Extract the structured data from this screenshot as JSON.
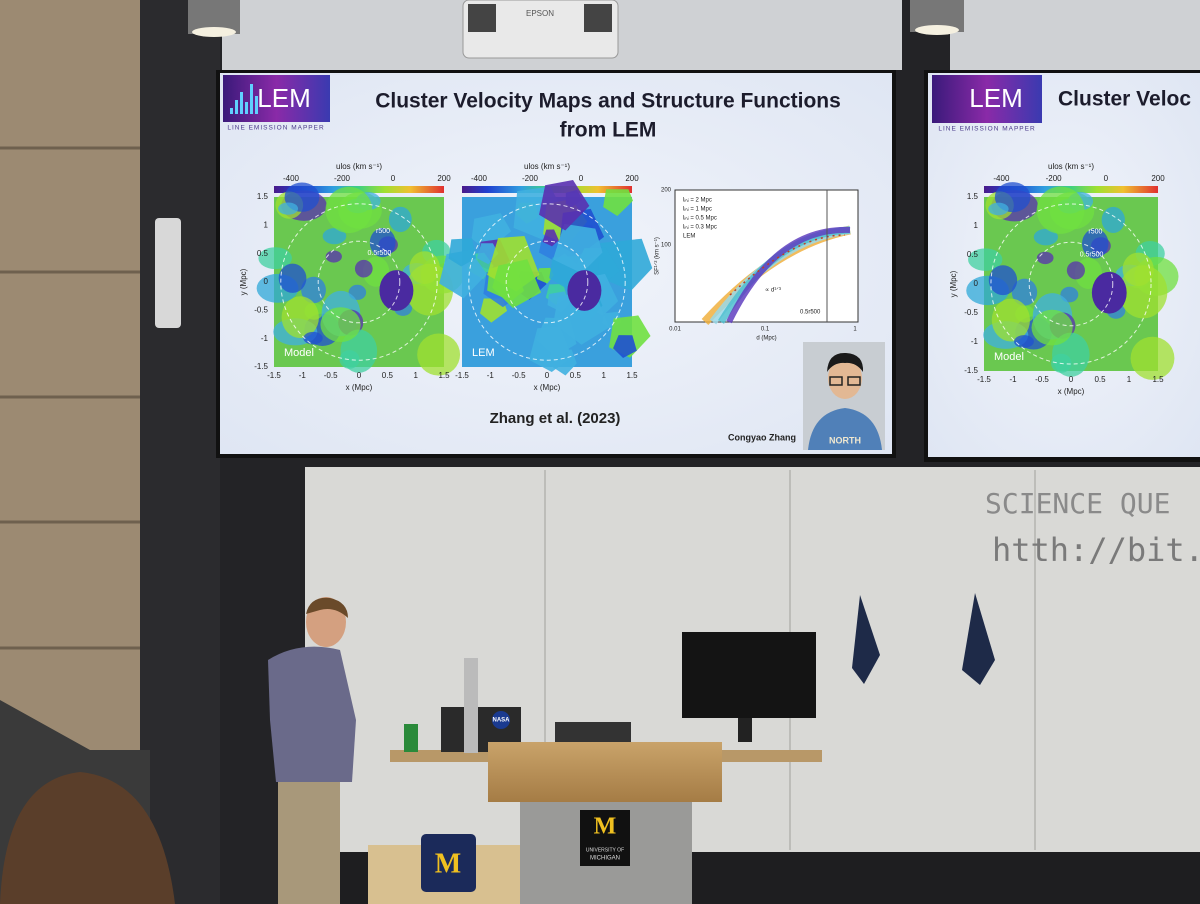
{
  "projector": {
    "brand": "EPSON"
  },
  "slide": {
    "logo": {
      "text": "LEM",
      "subtitle": "LINE EMISSION MAPPER"
    },
    "title": [
      "Cluster Velocity Maps and Structure Functions",
      "from LEM"
    ],
    "colorbar_label": "ulos (km s⁻¹)",
    "colorbar_ticks": [
      "-400",
      "-200",
      "0",
      "200"
    ],
    "y_axis_label": "y (Mpc)",
    "x_axis_label": "x (Mpc)",
    "y_ticks": [
      "1.5",
      "1",
      "0.5",
      "0",
      "-0.5",
      "-1",
      "-1.5"
    ],
    "x_ticks": [
      "-1.5",
      "-1",
      "-0.5",
      "0",
      "0.5",
      "1",
      "1.5"
    ],
    "map_labels": [
      "Model",
      "LEM"
    ],
    "radius_labels": [
      "r500",
      "0.5r500"
    ],
    "structure_function": {
      "y_label": "SF¹ᐟ² (km s⁻¹)",
      "x_label": "d (Mpc)",
      "y_ticks": [
        "200",
        "100"
      ],
      "x_ticks": [
        "0.01",
        "0.1",
        "1"
      ],
      "legend": [
        "lᵢₙⱼ = 2 Mpc",
        "lᵢₙⱼ = 1 Mpc",
        "lᵢₙⱼ = 0.5 Mpc",
        "lᵢₙⱼ = 0.3 Mpc",
        "LEM"
      ],
      "slope_label": "∝ d¹ᐟ³",
      "radius_label": "0.5r500"
    },
    "citation": "Zhang et al. (2023)",
    "photo_caption": "Congyao Zhang",
    "shirt_text": "NORTH"
  },
  "second_screen": {
    "title": "Cluster Veloc"
  },
  "whiteboard": [
    "SCIENCE QUE",
    "htth://bit.ly"
  ],
  "laptop_sticker": "NASA",
  "podium": {
    "logo": "M",
    "university": [
      "UNIVERSITY OF",
      "MICHIGAN"
    ]
  },
  "cube_logo": "M"
}
